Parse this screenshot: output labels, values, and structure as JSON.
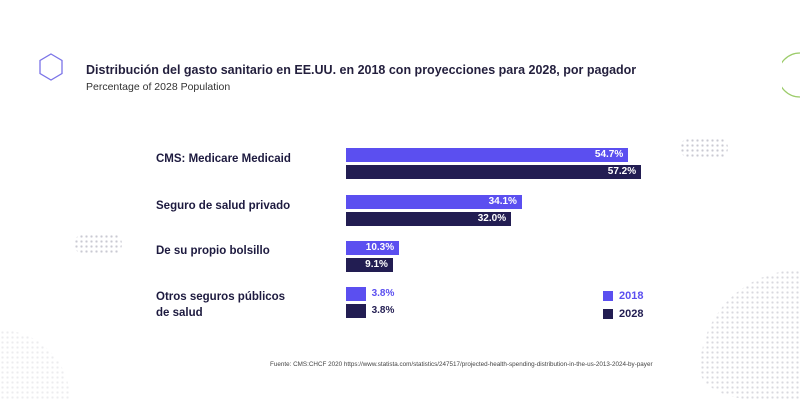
{
  "title": "Distribución del gasto sanitario en EE.UU. en 2018 con proyecciones para 2028, por pagador",
  "subtitle": "Percentage of 2028 Population",
  "source": "Fuente: CMS:CHCF 2020 https://www.statista.com/statistics/247517/projected-health-spending-distribution-in-the-us-2013-2024-by-payer",
  "colors": {
    "2018": "#5b4ff0",
    "2028": "#221d52"
  },
  "chart_data": {
    "type": "bar",
    "orientation": "horizontal",
    "categories": [
      "CMS: Medicare Medicaid",
      "Seguro de salud privado",
      "De su propio bolsillo",
      "Otros seguros públicos de salud"
    ],
    "series": [
      {
        "name": "2018",
        "values": [
          54.7,
          34.1,
          10.3,
          3.8
        ],
        "labels": [
          "54.7%",
          "34.1%",
          "10.3%",
          "3.8%"
        ]
      },
      {
        "name": "2028",
        "values": [
          57.2,
          32.0,
          9.1,
          3.8
        ],
        "labels": [
          "57.2%",
          "32.0%",
          "9.1%",
          "3.8%"
        ]
      }
    ],
    "unit": "%",
    "legend": "bottom-right",
    "grid": false
  }
}
